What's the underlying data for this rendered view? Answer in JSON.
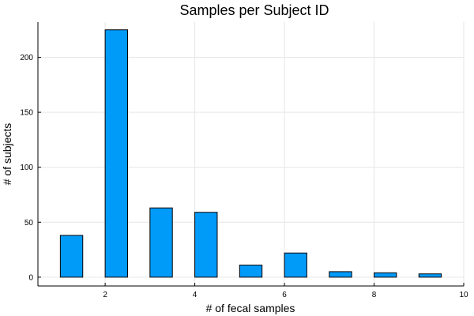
{
  "chart_data": {
    "type": "bar",
    "title": "Samples per Subject ID",
    "xlabel": "# of fecal samples",
    "ylabel": "# of subjects",
    "xlim": [
      0.5,
      10
    ],
    "ylim": [
      -8,
      232
    ],
    "xticks": [
      2,
      4,
      6,
      8,
      10
    ],
    "yticks": [
      0,
      50,
      100,
      150,
      200
    ],
    "bar_width": 0.5,
    "grid": true,
    "legend": "none",
    "bar_color": "#009af9",
    "bars": [
      {
        "x": 1.25,
        "value": 38
      },
      {
        "x": 2.25,
        "value": 225
      },
      {
        "x": 3.25,
        "value": 63
      },
      {
        "x": 4.25,
        "value": 59
      },
      {
        "x": 5.25,
        "value": 11
      },
      {
        "x": 6.25,
        "value": 22
      },
      {
        "x": 7.25,
        "value": 5
      },
      {
        "x": 8.25,
        "value": 4
      },
      {
        "x": 9.25,
        "value": 3
      }
    ]
  }
}
